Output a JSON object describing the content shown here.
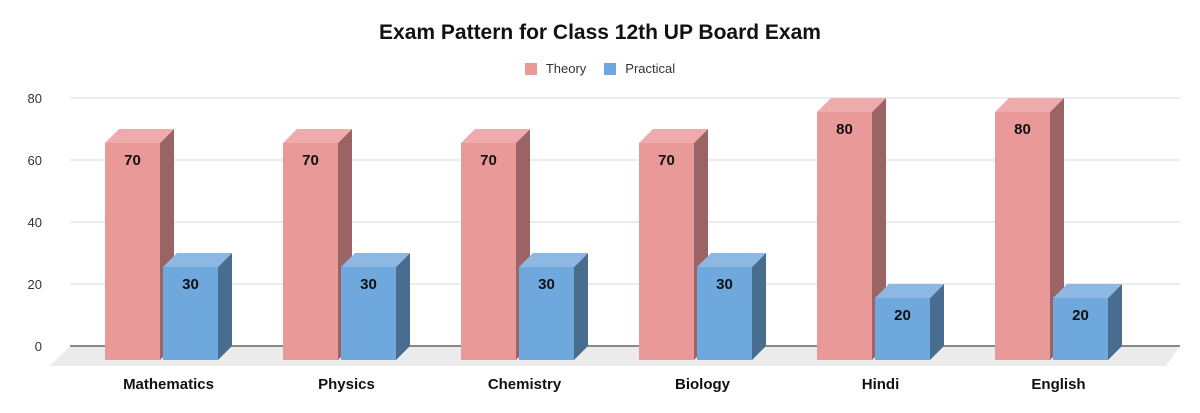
{
  "chart_data": {
    "type": "bar",
    "title": "Exam Pattern for Class 12th UP Board Exam",
    "xlabel": "",
    "ylabel": "",
    "ylim": [
      0,
      80
    ],
    "yticks": [
      0,
      20,
      40,
      60,
      80
    ],
    "grid": true,
    "legend_position": "top",
    "categories": [
      "Mathematics",
      "Physics",
      "Chemistry",
      "Biology",
      "Hindi",
      "English"
    ],
    "series": [
      {
        "name": "Theory",
        "color": "#ea9999",
        "values": [
          70,
          70,
          70,
          70,
          80,
          80
        ]
      },
      {
        "name": "Practical",
        "color": "#6fa8dc",
        "values": [
          30,
          30,
          30,
          30,
          20,
          20
        ]
      }
    ],
    "data_labels": true,
    "style": "3d-bar"
  }
}
